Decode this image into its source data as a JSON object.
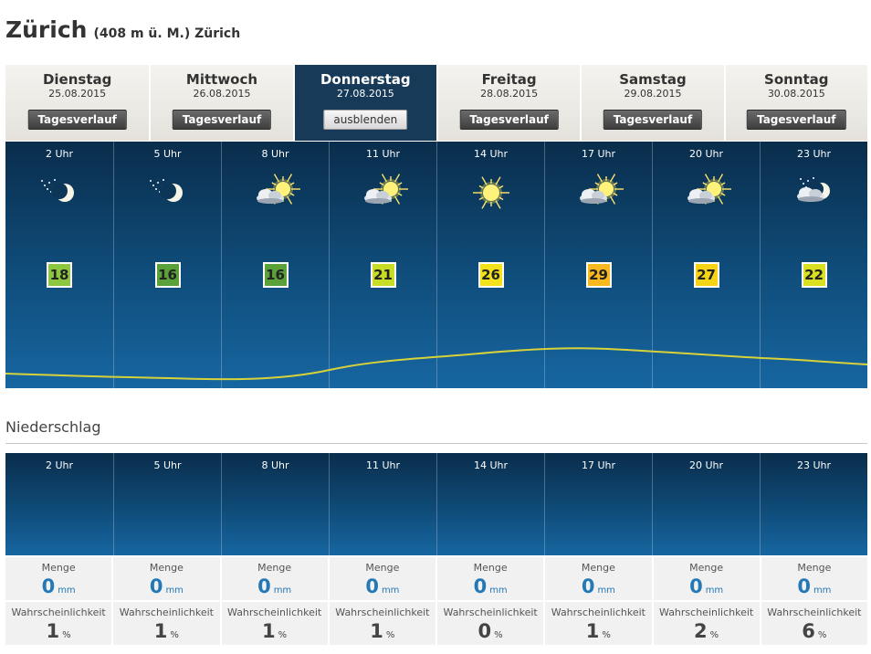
{
  "header": {
    "city": "Zürich",
    "subtitle": "(408 m ü. M.) Zürich"
  },
  "days": [
    {
      "name": "Dienstag",
      "date": "25.08.2015",
      "button": "Tagesverlauf",
      "active": false
    },
    {
      "name": "Mittwoch",
      "date": "26.08.2015",
      "button": "Tagesverlauf",
      "active": false
    },
    {
      "name": "Donnerstag",
      "date": "27.08.2015",
      "button": "ausblenden",
      "active": true
    },
    {
      "name": "Freitag",
      "date": "28.08.2015",
      "button": "Tagesverlauf",
      "active": false
    },
    {
      "name": "Samstag",
      "date": "29.08.2015",
      "button": "Tagesverlauf",
      "active": false
    },
    {
      "name": "Sonntag",
      "date": "30.08.2015",
      "button": "Tagesverlauf",
      "active": false
    }
  ],
  "hourly": [
    {
      "hour": "2 Uhr",
      "icon": "clear-night-moon-icon",
      "temp": "18",
      "temp_color": "#8dc63f"
    },
    {
      "hour": "5 Uhr",
      "icon": "clear-night-moon-icon",
      "temp": "16",
      "temp_color": "#5aa13a"
    },
    {
      "hour": "8 Uhr",
      "icon": "sun-with-cloud-icon",
      "temp": "16",
      "temp_color": "#5aa13a"
    },
    {
      "hour": "11 Uhr",
      "icon": "sun-with-cloud-icon",
      "temp": "21",
      "temp_color": "#c6dc25"
    },
    {
      "hour": "14 Uhr",
      "icon": "sun-icon",
      "temp": "26",
      "temp_color": "#f2e11b"
    },
    {
      "hour": "17 Uhr",
      "icon": "sun-with-cloud-icon",
      "temp": "29",
      "temp_color": "#f7b91d"
    },
    {
      "hour": "20 Uhr",
      "icon": "sun-with-cloud-icon",
      "temp": "27",
      "temp_color": "#f5d416"
    },
    {
      "hour": "23 Uhr",
      "icon": "moon-with-cloud-icon",
      "temp": "22",
      "temp_color": "#d8e021"
    }
  ],
  "curve_color": "#d8d23a",
  "precipitation": {
    "title": "Niederschlag",
    "hours": [
      "2 Uhr",
      "5 Uhr",
      "8 Uhr",
      "11 Uhr",
      "14 Uhr",
      "17 Uhr",
      "20 Uhr",
      "23 Uhr"
    ],
    "amount_label": "Menge",
    "amount_unit": "mm",
    "amounts": [
      "0",
      "0",
      "0",
      "0",
      "0",
      "0",
      "0",
      "0"
    ],
    "probability_label": "Wahrscheinlichkeit",
    "probability_unit": "%",
    "probabilities": [
      "1",
      "1",
      "1",
      "1",
      "0",
      "1",
      "2",
      "6"
    ]
  }
}
